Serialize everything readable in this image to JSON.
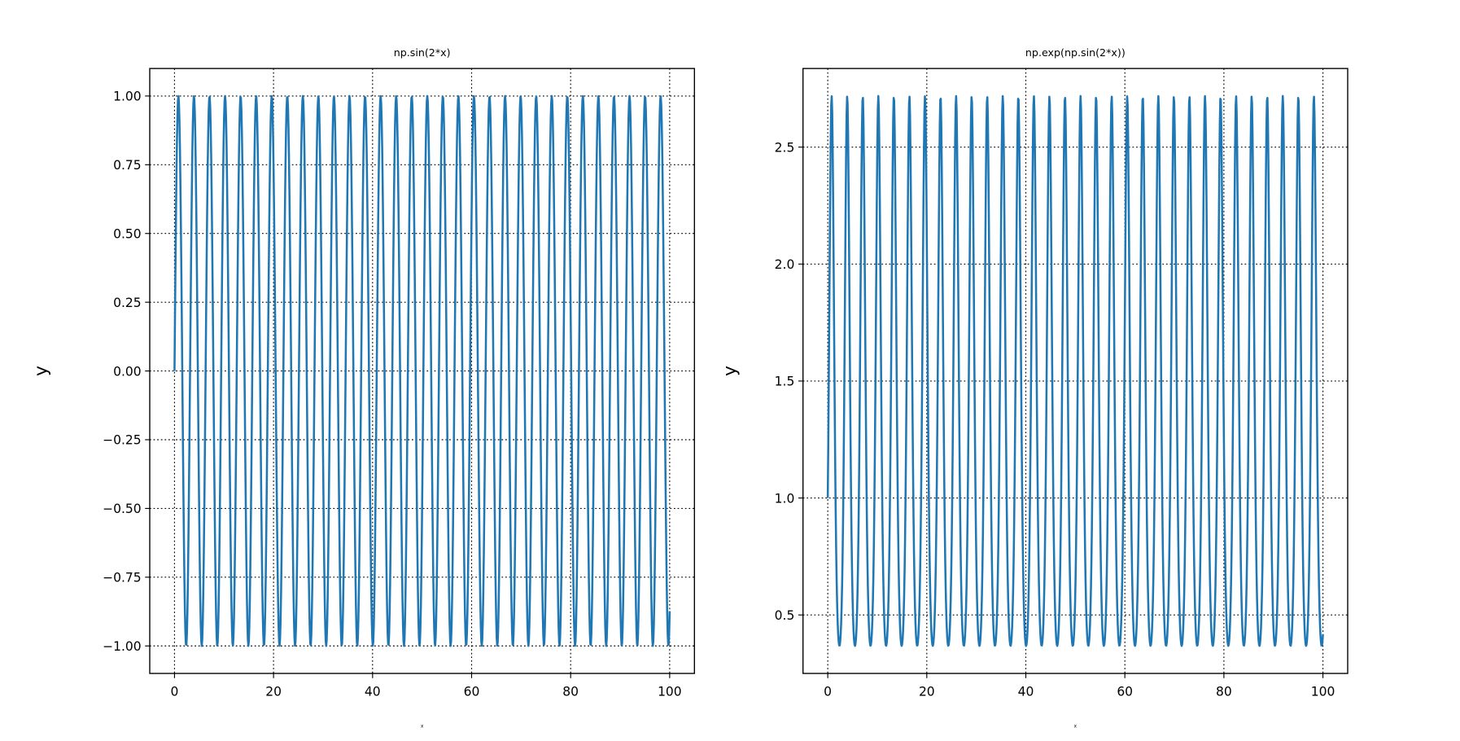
{
  "chart_data": [
    {
      "type": "line",
      "title": "np.sin(2*x)",
      "xlabel": "x",
      "ylabel": "y",
      "x": {
        "start": 0,
        "stop": 100,
        "num": 1000
      },
      "function": "sin(2x)",
      "xlim": [
        -5,
        105
      ],
      "ylim": [
        -1.1,
        1.1
      ],
      "xticks": [
        0,
        20,
        40,
        60,
        80,
        100
      ],
      "xtick_labels": [
        "0",
        "20",
        "40",
        "60",
        "80",
        "100"
      ],
      "yticks": [
        -1,
        -0.75,
        -0.5,
        -0.25,
        0,
        0.25,
        0.5,
        0.75,
        1
      ],
      "ytick_labels": [
        "−1.00",
        "−0.75",
        "−0.50",
        "−0.25",
        "0.00",
        "0.25",
        "0.50",
        "0.75",
        "1.00"
      ],
      "grid": true,
      "grid_style": "dotted",
      "line_color": "#1f77b4"
    },
    {
      "type": "line",
      "title": "np.exp(np.sin(2*x))",
      "xlabel": "x",
      "ylabel": "y",
      "x": {
        "start": 0,
        "stop": 100,
        "num": 1000
      },
      "function": "exp(sin(2x))",
      "xlim": [
        -5,
        105
      ],
      "ylim": [
        0.25,
        2.836
      ],
      "xticks": [
        0,
        20,
        40,
        60,
        80,
        100
      ],
      "xtick_labels": [
        "0",
        "20",
        "40",
        "60",
        "80",
        "100"
      ],
      "yticks": [
        0.5,
        1.0,
        1.5,
        2.0,
        2.5
      ],
      "ytick_labels": [
        "0.5",
        "1.0",
        "1.5",
        "2.0",
        "2.5"
      ],
      "grid": true,
      "grid_style": "dotted",
      "line_color": "#1f77b4"
    }
  ]
}
